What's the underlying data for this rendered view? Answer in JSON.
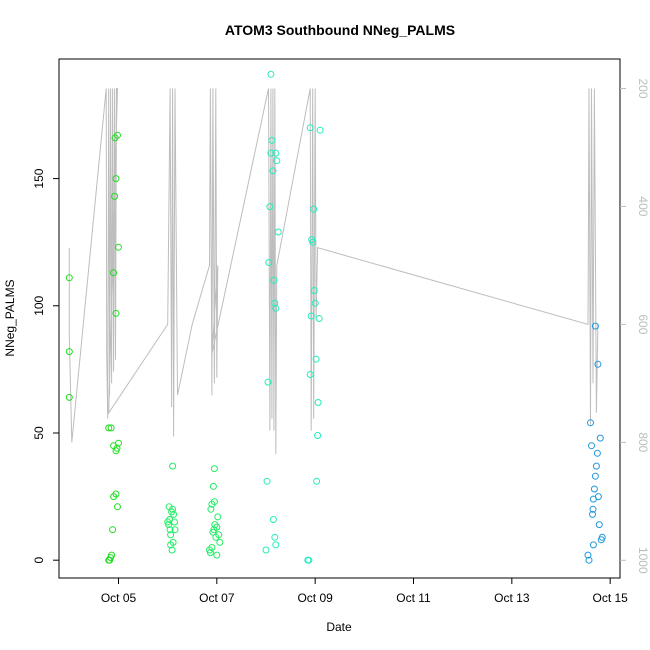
{
  "chart_data": {
    "type": "scatter",
    "title": "ATOM3 Southbound NNeg_PALMS",
    "xlabel": "Date",
    "ylabel": "NNeg_PALMS",
    "x_ticks": [
      "Oct 05",
      "Oct 07",
      "Oct 09",
      "Oct 11",
      "Oct 13",
      "Oct 15"
    ],
    "y_ticks": [
      0,
      50,
      100,
      150
    ],
    "y2_ticks": [
      200,
      400,
      600,
      800,
      1000
    ],
    "xlim_days": [
      3.79,
      15.2
    ],
    "ylim": [
      -7,
      197
    ],
    "y2lim": [
      1030,
      150
    ],
    "series": [
      {
        "color": "#22dd22",
        "points": [
          [
            4.0,
            64
          ],
          [
            4.0,
            82
          ],
          [
            4.0,
            111
          ],
          [
            4.8,
            0
          ],
          [
            4.82,
            0
          ],
          [
            4.84,
            1
          ],
          [
            4.86,
            2
          ],
          [
            4.8,
            52
          ],
          [
            4.85,
            52
          ],
          [
            4.88,
            12
          ],
          [
            4.9,
            25
          ],
          [
            4.95,
            26
          ],
          [
            4.98,
            21
          ],
          [
            4.9,
            45
          ],
          [
            4.95,
            43
          ],
          [
            4.97,
            44
          ],
          [
            5.0,
            46
          ],
          [
            4.9,
            113
          ],
          [
            4.92,
            143
          ],
          [
            4.95,
            150
          ],
          [
            4.95,
            97
          ],
          [
            5.0,
            123
          ],
          [
            4.93,
            166
          ],
          [
            4.98,
            167
          ]
        ]
      },
      {
        "color": "#22ee66",
        "points": [
          [
            6.0,
            15
          ],
          [
            6.02,
            14
          ],
          [
            6.04,
            16
          ],
          [
            6.05,
            12
          ],
          [
            6.06,
            10
          ],
          [
            6.08,
            19
          ],
          [
            6.1,
            20
          ],
          [
            6.1,
            37
          ],
          [
            6.12,
            18
          ],
          [
            6.14,
            15
          ],
          [
            6.15,
            12
          ],
          [
            6.03,
            21
          ],
          [
            6.06,
            6
          ],
          [
            6.09,
            4
          ],
          [
            6.11,
            7
          ],
          [
            6.85,
            4
          ],
          [
            6.87,
            3
          ],
          [
            6.9,
            5
          ],
          [
            6.92,
            11
          ],
          [
            6.94,
            12
          ],
          [
            6.96,
            14
          ],
          [
            6.98,
            9
          ],
          [
            7.0,
            13
          ],
          [
            7.02,
            17
          ],
          [
            7.04,
            10
          ],
          [
            7.06,
            7
          ],
          [
            6.88,
            20
          ],
          [
            6.9,
            22
          ],
          [
            6.95,
            23
          ],
          [
            6.93,
            29
          ],
          [
            6.95,
            36
          ],
          [
            7.0,
            2
          ]
        ]
      },
      {
        "color": "#22eebb",
        "points": [
          [
            8.0,
            4
          ],
          [
            8.02,
            31
          ],
          [
            8.04,
            70
          ],
          [
            8.06,
            117
          ],
          [
            8.08,
            139
          ],
          [
            8.1,
            160
          ],
          [
            8.12,
            165
          ],
          [
            8.14,
            153
          ],
          [
            8.16,
            110
          ],
          [
            8.18,
            101
          ],
          [
            8.2,
            99
          ],
          [
            8.15,
            16
          ],
          [
            8.18,
            9
          ],
          [
            8.2,
            6
          ],
          [
            8.1,
            191
          ],
          [
            8.2,
            160
          ],
          [
            8.22,
            157
          ],
          [
            8.25,
            129
          ],
          [
            8.85,
            0
          ],
          [
            8.87,
            0
          ],
          [
            8.9,
            73
          ],
          [
            8.92,
            96
          ],
          [
            8.93,
            126
          ],
          [
            8.95,
            125
          ],
          [
            8.97,
            138
          ],
          [
            8.98,
            106
          ],
          [
            9.0,
            101
          ],
          [
            9.02,
            79
          ],
          [
            9.03,
            31
          ],
          [
            9.05,
            49
          ],
          [
            9.06,
            62
          ],
          [
            9.08,
            95
          ],
          [
            9.1,
            169
          ],
          [
            8.9,
            170
          ]
        ]
      },
      {
        "color": "#2299dd",
        "points": [
          [
            14.55,
            2
          ],
          [
            14.57,
            0
          ],
          [
            14.6,
            54
          ],
          [
            14.62,
            45
          ],
          [
            14.64,
            18
          ],
          [
            14.65,
            20
          ],
          [
            14.66,
            24
          ],
          [
            14.68,
            28
          ],
          [
            14.7,
            33
          ],
          [
            14.72,
            37
          ],
          [
            14.74,
            42
          ],
          [
            14.76,
            25
          ],
          [
            14.78,
            14
          ],
          [
            14.8,
            48
          ],
          [
            14.82,
            8
          ],
          [
            14.84,
            9
          ],
          [
            14.7,
            92
          ],
          [
            14.75,
            77
          ],
          [
            14.66,
            6
          ]
        ]
      }
    ],
    "overlay_line": {
      "color": "#bdbdbd",
      "axis": "right",
      "points": [
        [
          4.0,
          470
        ],
        [
          4.0,
          620
        ],
        [
          4.05,
          800
        ],
        [
          4.75,
          200
        ],
        [
          4.76,
          650
        ],
        [
          4.78,
          760
        ],
        [
          4.8,
          200
        ],
        [
          4.82,
          720
        ],
        [
          4.84,
          200
        ],
        [
          4.86,
          700
        ],
        [
          4.88,
          200
        ],
        [
          4.9,
          680
        ],
        [
          4.92,
          200
        ],
        [
          4.94,
          660
        ],
        [
          4.96,
          200
        ],
        [
          4.98,
          200
        ],
        [
          4.8,
          750
        ],
        [
          6.0,
          600
        ],
        [
          6.05,
          200
        ],
        [
          6.08,
          740
        ],
        [
          6.1,
          200
        ],
        [
          6.12,
          790
        ],
        [
          6.15,
          200
        ],
        [
          6.2,
          720
        ],
        [
          6.5,
          600
        ],
        [
          6.85,
          500
        ],
        [
          6.87,
          200
        ],
        [
          6.9,
          720
        ],
        [
          6.92,
          200
        ],
        [
          6.95,
          700
        ],
        [
          6.98,
          200
        ],
        [
          7.0,
          690
        ],
        [
          7.02,
          500
        ],
        [
          6.9,
          650
        ],
        [
          8.05,
          200
        ],
        [
          8.08,
          780
        ],
        [
          8.1,
          200
        ],
        [
          8.12,
          760
        ],
        [
          8.14,
          200
        ],
        [
          8.16,
          780
        ],
        [
          8.18,
          200
        ],
        [
          8.2,
          820
        ],
        [
          8.22,
          500
        ],
        [
          8.9,
          200
        ],
        [
          8.92,
          780
        ],
        [
          8.95,
          200
        ],
        [
          8.97,
          760
        ],
        [
          9.0,
          200
        ],
        [
          9.02,
          590
        ],
        [
          9.05,
          470
        ],
        [
          14.55,
          600
        ],
        [
          14.57,
          200
        ],
        [
          14.6,
          770
        ],
        [
          14.62,
          200
        ],
        [
          14.65,
          700
        ],
        [
          14.68,
          200
        ],
        [
          14.72,
          750
        ],
        [
          14.75,
          600
        ]
      ]
    }
  }
}
